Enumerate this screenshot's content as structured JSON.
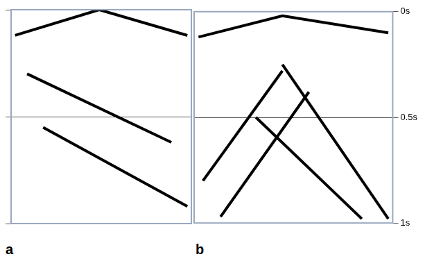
{
  "chart_data": [
    {
      "type": "line",
      "title": "a",
      "xlim": [
        0,
        45
      ],
      "ylim": [
        0,
        1
      ],
      "yticks": [
        {
          "value": 0,
          "label": "0s"
        },
        {
          "value": 0.5,
          "label": "0.5s"
        },
        {
          "value": 1,
          "label": "1s"
        }
      ],
      "grid": true,
      "tick_labels": false,
      "series": [
        {
          "color": "#000000",
          "x": [
            1,
            22,
            44
          ],
          "values": [
            0.12,
            0.0,
            0.12
          ]
        },
        {
          "color": "#000000",
          "x": [
            4,
            40
          ],
          "values": [
            0.3,
            0.62
          ]
        },
        {
          "color": "#000000",
          "x": [
            8,
            44
          ],
          "values": [
            0.55,
            0.92
          ]
        }
      ]
    },
    {
      "type": "line",
      "title": "b",
      "xlim": [
        0,
        45
      ],
      "ylim": [
        0,
        1
      ],
      "yticks": [
        {
          "value": 0,
          "label": "0s"
        },
        {
          "value": 0.5,
          "label": "0.5s"
        },
        {
          "value": 1,
          "label": "1s"
        }
      ],
      "grid": true,
      "tick_labels": "y",
      "series": [
        {
          "color": "#000000",
          "x": [
            1,
            20,
            44
          ],
          "values": [
            0.12,
            0.02,
            0.1
          ]
        },
        {
          "color": "#000000",
          "x": [
            20,
            2
          ],
          "values": [
            0.28,
            0.8
          ]
        },
        {
          "color": "#000000",
          "x": [
            20,
            44
          ],
          "values": [
            0.25,
            0.98
          ]
        },
        {
          "color": "#000000",
          "x": [
            26,
            6
          ],
          "values": [
            0.38,
            0.97
          ]
        },
        {
          "color": "#000000",
          "x": [
            14,
            38
          ],
          "values": [
            0.5,
            0.98
          ]
        }
      ]
    }
  ]
}
